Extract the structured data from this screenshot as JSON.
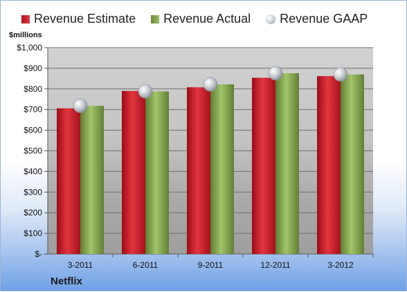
{
  "chart_data": {
    "type": "bar",
    "company": "Netflix",
    "units_label": "$millions",
    "categories": [
      "3-2011",
      "6-2011",
      "9-2011",
      "12-2011",
      "3-2012"
    ],
    "series": [
      {
        "name": "Revenue Estimate",
        "type": "bar",
        "color": "#c8202a",
        "values": [
          706,
          790,
          808,
          854,
          862
        ]
      },
      {
        "name": "Revenue Actual",
        "type": "bar",
        "color": "#8aab55",
        "values": [
          718,
          788,
          822,
          876,
          870
        ]
      },
      {
        "name": "Revenue GAAP",
        "type": "scatter",
        "color": "#b9bec6",
        "values": [
          718,
          788,
          822,
          876,
          870
        ]
      }
    ],
    "ylim": [
      0,
      1000
    ],
    "yticks": [
      {
        "value": 0,
        "label": "$-"
      },
      {
        "value": 100,
        "label": "$100"
      },
      {
        "value": 200,
        "label": "$200"
      },
      {
        "value": 300,
        "label": "$300"
      },
      {
        "value": 400,
        "label": "$400"
      },
      {
        "value": 500,
        "label": "$500"
      },
      {
        "value": 600,
        "label": "$600"
      },
      {
        "value": 700,
        "label": "$700"
      },
      {
        "value": 800,
        "label": "$800"
      },
      {
        "value": 900,
        "label": "$900"
      },
      {
        "value": 1000,
        "label": "$1,000"
      }
    ],
    "grid": true,
    "legend_position": "top"
  }
}
